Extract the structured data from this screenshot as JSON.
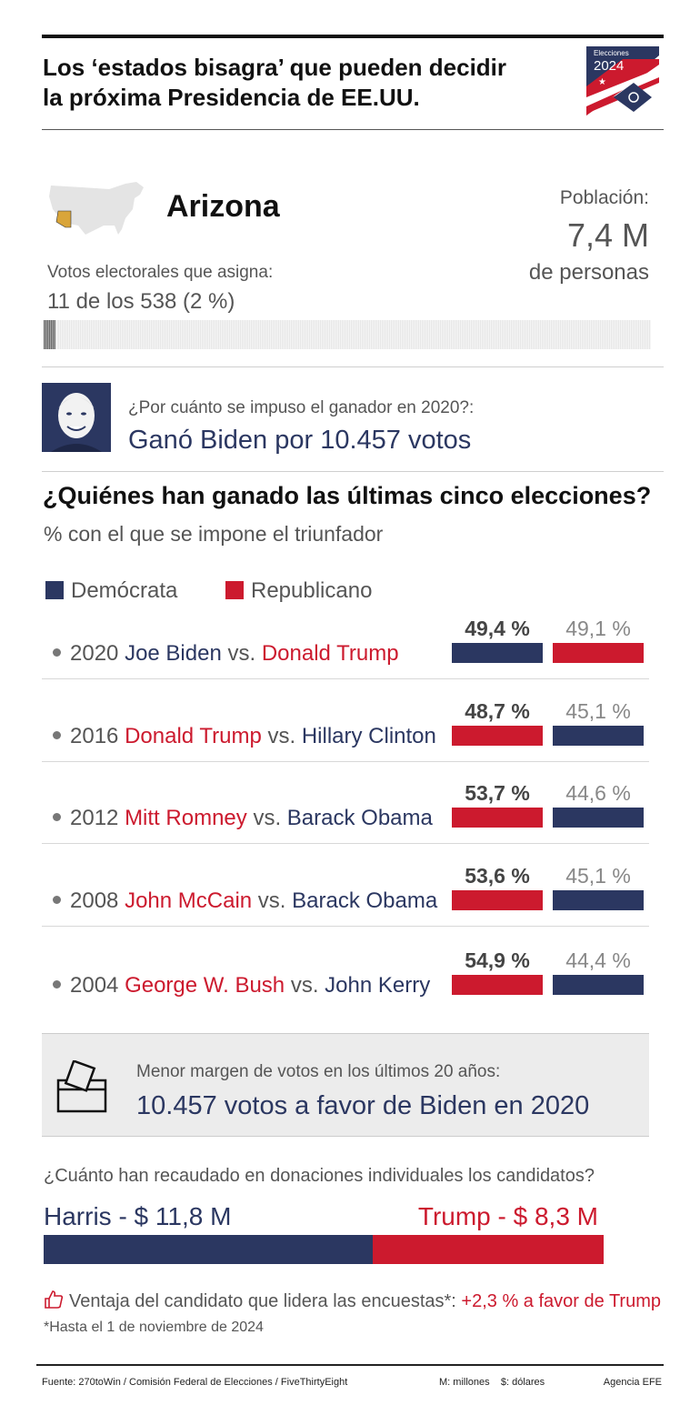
{
  "header": {
    "title_line1": "Los ‘estados bisagra’ que pueden decidir",
    "title_line2": "la próxima Presidencia de EE.UU.",
    "logo_small": "Elecciones",
    "logo_year": "2024"
  },
  "state": {
    "name": "Arizona",
    "electoral_label": "Votos electorales que asigna:",
    "electoral_value": "11 de los 538 (2 %)",
    "electoral_fraction": 0.02,
    "population_label": "Población:",
    "population_value": "7,4 M",
    "population_unit": "de personas"
  },
  "winner2020": {
    "question": "¿Por cuánto se impuso el ganador en 2020?:",
    "answer": "Ganó Biden por 10.457 votos"
  },
  "history": {
    "title": "¿Quiénes han ganado las últimas cinco elecciones?",
    "subtitle": "% con el que se impone el triunfador",
    "legend_dem": "Demócrata",
    "legend_rep": "Republicano",
    "colors": {
      "dem": "#2b3761",
      "rep": "#cc1a2e"
    },
    "rows": [
      {
        "year": "2020",
        "winner": "Joe Biden",
        "vs": "vs.",
        "loser": "Donald Trump",
        "winner_party": "dem",
        "loser_party": "rep",
        "winner_pct": "49,4 %",
        "loser_pct": "49,1 %"
      },
      {
        "year": "2016",
        "winner": "Donald Trump",
        "vs": "vs.",
        "loser": "Hillary Clinton",
        "winner_party": "rep",
        "loser_party": "dem",
        "winner_pct": "48,7 %",
        "loser_pct": "45,1 %"
      },
      {
        "year": "2012",
        "winner": "Mitt Romney",
        "vs": "vs.",
        "loser": "Barack Obama",
        "winner_party": "rep",
        "loser_party": "dem",
        "winner_pct": "53,7 %",
        "loser_pct": "44,6 %"
      },
      {
        "year": "2008",
        "winner": "John McCain",
        "vs": "vs.",
        "loser": "Barack Obama",
        "winner_party": "rep",
        "loser_party": "dem",
        "winner_pct": "53,6 %",
        "loser_pct": "45,1 %"
      },
      {
        "year": "2004",
        "winner": "George W. Bush",
        "vs": "vs.",
        "loser": "John Kerry",
        "winner_party": "rep",
        "loser_party": "dem",
        "winner_pct": "54,9 %",
        "loser_pct": "44,4 %"
      }
    ]
  },
  "margin_box": {
    "label": "Menor margen de votos en los últimos 20 años:",
    "value": "10.457 votos a favor de Biden en 2020"
  },
  "donations": {
    "question": "¿Cuánto han recaudado en donaciones individuales los candidatos?",
    "harris_label": "Harris - $ 11,8 M",
    "trump_label": "Trump - $ 8,3 M",
    "harris_value": 11.8,
    "trump_value": 8.3
  },
  "polls": {
    "label": "Ventaja del candidato que lidera las encuestas*:",
    "value": "+2,3 % a favor de Trump",
    "note": "*Hasta el 1 de noviembre de 2024"
  },
  "footer": {
    "source": "Fuente: 270toWin / Comisión Federal de Elecciones / FiveThirtyEight",
    "units": "M: millones    $: dólares",
    "agency": "Agencia EFE"
  }
}
